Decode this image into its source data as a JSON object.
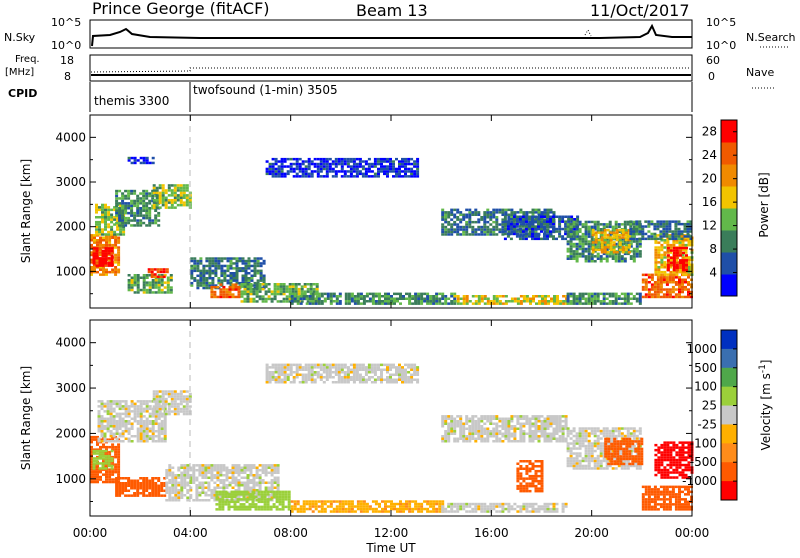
{
  "header": {
    "title": "Prince George (fitACF)",
    "beam": "Beam 13",
    "date": "11/Oct/2017"
  },
  "strips": {
    "nsky_label": "N.Sky",
    "nsky_ticks": [
      "10^5",
      "10^0"
    ],
    "nsearch_label": "N.Search",
    "nsearch_ticks": [
      "10^5",
      "10^0"
    ],
    "freq_label": "Freq.",
    "freq_unit": "[MHz]",
    "freq_ticks": [
      "18",
      "8"
    ],
    "nave_label": "Nave",
    "nave_ticks": [
      "60",
      "0"
    ],
    "cpid_label": "CPID",
    "cpid_segments": [
      "themis 3300",
      "twofsound (1-min) 3505"
    ]
  },
  "time_axis": {
    "label": "Time UT",
    "ticks": [
      "00:00",
      "04:00",
      "08:00",
      "12:00",
      "16:00",
      "20:00",
      "00:00"
    ]
  },
  "colors": {
    "power_scale": [
      "#0000ff",
      "#1f4fa8",
      "#3a7d5a",
      "#62b84a",
      "#f2c400",
      "#f08a00",
      "#f05a00",
      "#ff0000"
    ],
    "velocity_scale": [
      "#ff0000",
      "#ff5a00",
      "#ff8c1a",
      "#ffb000",
      "#c8c8c8",
      "#9bd03a",
      "#4fa84a",
      "#3a6fb0",
      "#0030c0"
    ],
    "ground_scatter": "#c0c0c0"
  },
  "chart_data": [
    {
      "type": "heatmap",
      "title": "",
      "xlabel": "Time UT",
      "ylabel": "Slant Range [km]",
      "x_ticks": [
        "00:00",
        "04:00",
        "08:00",
        "12:00",
        "16:00",
        "20:00",
        "00:00"
      ],
      "xlim_hours": [
        0,
        24
      ],
      "ylim": [
        180,
        4500
      ],
      "y_ticks": [
        1000,
        2000,
        3000,
        4000
      ],
      "colorbar": {
        "label": "Power [dB]",
        "ticks": [
          4,
          8,
          12,
          16,
          20,
          24,
          28
        ],
        "range": [
          0,
          30
        ]
      },
      "regions": [
        {
          "t0": 0.0,
          "t1": 1.2,
          "r0": 900,
          "r1": 1800,
          "value": 22
        },
        {
          "t0": 0.1,
          "t1": 0.9,
          "r0": 1100,
          "r1": 1500,
          "value": 29
        },
        {
          "t0": 0.2,
          "t1": 1.4,
          "r0": 1800,
          "r1": 2500,
          "value": 14
        },
        {
          "t0": 1.0,
          "t1": 2.8,
          "r0": 2000,
          "r1": 2800,
          "value": 10
        },
        {
          "t0": 2.5,
          "t1": 4.0,
          "r0": 2400,
          "r1": 2900,
          "value": 14
        },
        {
          "t0": 1.5,
          "t1": 3.2,
          "r0": 500,
          "r1": 900,
          "value": 12
        },
        {
          "t0": 2.3,
          "t1": 3.1,
          "r0": 850,
          "r1": 1050,
          "value": 26
        },
        {
          "t0": 4.0,
          "t1": 7.0,
          "r0": 600,
          "r1": 1300,
          "value": 8
        },
        {
          "t0": 4.8,
          "t1": 6.0,
          "r0": 400,
          "r1": 700,
          "value": 24
        },
        {
          "t0": 6.0,
          "t1": 9.0,
          "r0": 300,
          "r1": 700,
          "value": 12
        },
        {
          "t0": 8.0,
          "t1": 14.5,
          "r0": 250,
          "r1": 500,
          "value": 10
        },
        {
          "t0": 14.5,
          "t1": 19.0,
          "r0": 250,
          "r1": 450,
          "value": 16
        },
        {
          "t0": 19.0,
          "t1": 22.0,
          "r0": 250,
          "r1": 500,
          "value": 10
        },
        {
          "t0": 22.0,
          "t1": 24.0,
          "r0": 400,
          "r1": 900,
          "value": 24
        },
        {
          "t0": 14.0,
          "t1": 18.5,
          "r0": 1800,
          "r1": 2400,
          "value": 8
        },
        {
          "t0": 16.5,
          "t1": 19.5,
          "r0": 1700,
          "r1": 2200,
          "value": 6
        },
        {
          "t0": 19.0,
          "t1": 22.0,
          "r0": 1200,
          "r1": 2100,
          "value": 10
        },
        {
          "t0": 20.0,
          "t1": 21.5,
          "r0": 1400,
          "r1": 1900,
          "value": 18
        },
        {
          "t0": 22.5,
          "t1": 24.0,
          "r0": 900,
          "r1": 1800,
          "value": 18
        },
        {
          "t0": 23.0,
          "t1": 23.8,
          "r0": 1000,
          "r1": 1500,
          "value": 28
        },
        {
          "t0": 21.5,
          "t1": 24.0,
          "r0": 1700,
          "r1": 2100,
          "value": 8
        },
        {
          "t0": 7.0,
          "t1": 13.0,
          "r0": 3100,
          "r1": 3500,
          "value": 4
        },
        {
          "t0": 1.5,
          "t1": 2.5,
          "r0": 3400,
          "r1": 3550,
          "value": 4
        }
      ]
    },
    {
      "type": "heatmap",
      "title": "",
      "xlabel": "Time UT",
      "ylabel": "Slant Range [km]",
      "x_ticks": [
        "00:00",
        "04:00",
        "08:00",
        "12:00",
        "16:00",
        "20:00",
        "00:00"
      ],
      "xlim_hours": [
        0,
        24
      ],
      "ylim": [
        180,
        4500
      ],
      "y_ticks": [
        1000,
        2000,
        3000,
        4000
      ],
      "colorbar": {
        "label": "Velocity [m s^-1]",
        "ticks": [
          "1000",
          "500",
          "100",
          "25",
          "-25",
          "-100",
          "-500",
          "-1000"
        ]
      },
      "regions": [
        {
          "t0": 0.0,
          "t1": 1.2,
          "r0": 900,
          "r1": 1900,
          "value": -300
        },
        {
          "t0": 0.1,
          "t1": 0.9,
          "r0": 1200,
          "r1": 1600,
          "value": 60
        },
        {
          "t0": 0.3,
          "t1": 3.0,
          "r0": 1800,
          "r1": 2700,
          "value": 0
        },
        {
          "t0": 2.5,
          "t1": 4.0,
          "r0": 2400,
          "r1": 2900,
          "value": 0
        },
        {
          "t0": 1.0,
          "t1": 3.0,
          "r0": 600,
          "r1": 1000,
          "value": -300
        },
        {
          "t0": 3.0,
          "t1": 7.5,
          "r0": 500,
          "r1": 1300,
          "value": 0
        },
        {
          "t0": 5.0,
          "t1": 8.0,
          "r0": 300,
          "r1": 700,
          "value": 60
        },
        {
          "t0": 8.0,
          "t1": 14.0,
          "r0": 250,
          "r1": 500,
          "value": -80
        },
        {
          "t0": 14.0,
          "t1": 19.0,
          "r0": 250,
          "r1": 450,
          "value": 0
        },
        {
          "t0": 17.0,
          "t1": 18.0,
          "r0": 700,
          "r1": 1400,
          "value": -400
        },
        {
          "t0": 14.0,
          "t1": 19.0,
          "r0": 1800,
          "r1": 2400,
          "value": 0
        },
        {
          "t0": 19.0,
          "t1": 22.0,
          "r0": 1200,
          "r1": 2100,
          "value": 0
        },
        {
          "t0": 20.5,
          "t1": 22.0,
          "r0": 1300,
          "r1": 1900,
          "value": -450
        },
        {
          "t0": 22.5,
          "t1": 24.0,
          "r0": 1000,
          "r1": 1800,
          "value": -600
        },
        {
          "t0": 22.0,
          "t1": 24.0,
          "r0": 300,
          "r1": 800,
          "value": -300
        },
        {
          "t0": 7.0,
          "t1": 13.0,
          "r0": 3100,
          "r1": 3500,
          "value": 0
        }
      ]
    }
  ]
}
